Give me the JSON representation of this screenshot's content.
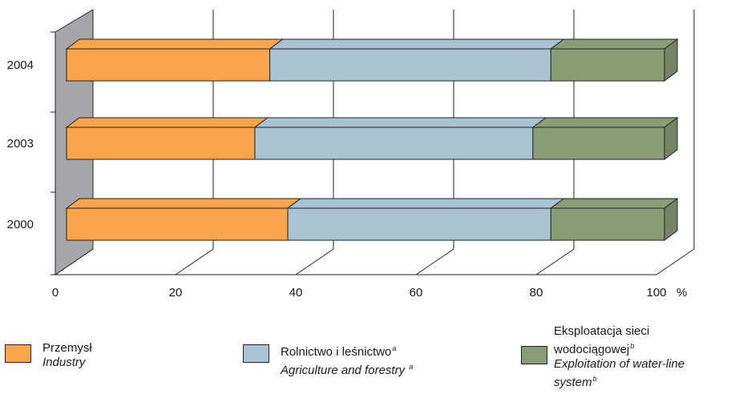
{
  "chart_data": {
    "type": "bar",
    "orientation": "horizontal",
    "stacked": true,
    "categories": [
      "2004",
      "2003",
      "2000"
    ],
    "series": [
      {
        "name": "Przemysł",
        "name_en": "Industry",
        "color": "#F9A54B",
        "values": [
          34,
          31.5,
          37
        ]
      },
      {
        "name": "Rolnictwo i leśnictwo",
        "name_en": "Agriculture and forestry",
        "note": "a",
        "color": "#A8C3D4",
        "values": [
          47,
          46.5,
          44
        ]
      },
      {
        "name": "Eksploatacja sieci wodociągowej",
        "name_en": "Exploitation of water-line system",
        "note": "b",
        "color": "#889C75",
        "values": [
          19,
          22,
          19
        ]
      }
    ],
    "x_ticks": [
      "0",
      "20",
      "40",
      "60",
      "80",
      "100"
    ],
    "xlim": [
      0,
      100
    ],
    "x_unit": "%",
    "grid": true,
    "legend_position": "bottom"
  },
  "legend": {
    "item1_pl": "Przemysł",
    "item1_en": "Industry",
    "item2_pl": "Rolnictwo i leśnictwo",
    "item2_en": "Agriculture and forestry",
    "item2_note": "a",
    "item3_pl_line1": "Eksploatacja sieci",
    "item3_pl_line2": "wodociągowej",
    "item3_en_line1": "Exploitation of water-line",
    "item3_en_line2": "system",
    "item3_note": "b"
  }
}
